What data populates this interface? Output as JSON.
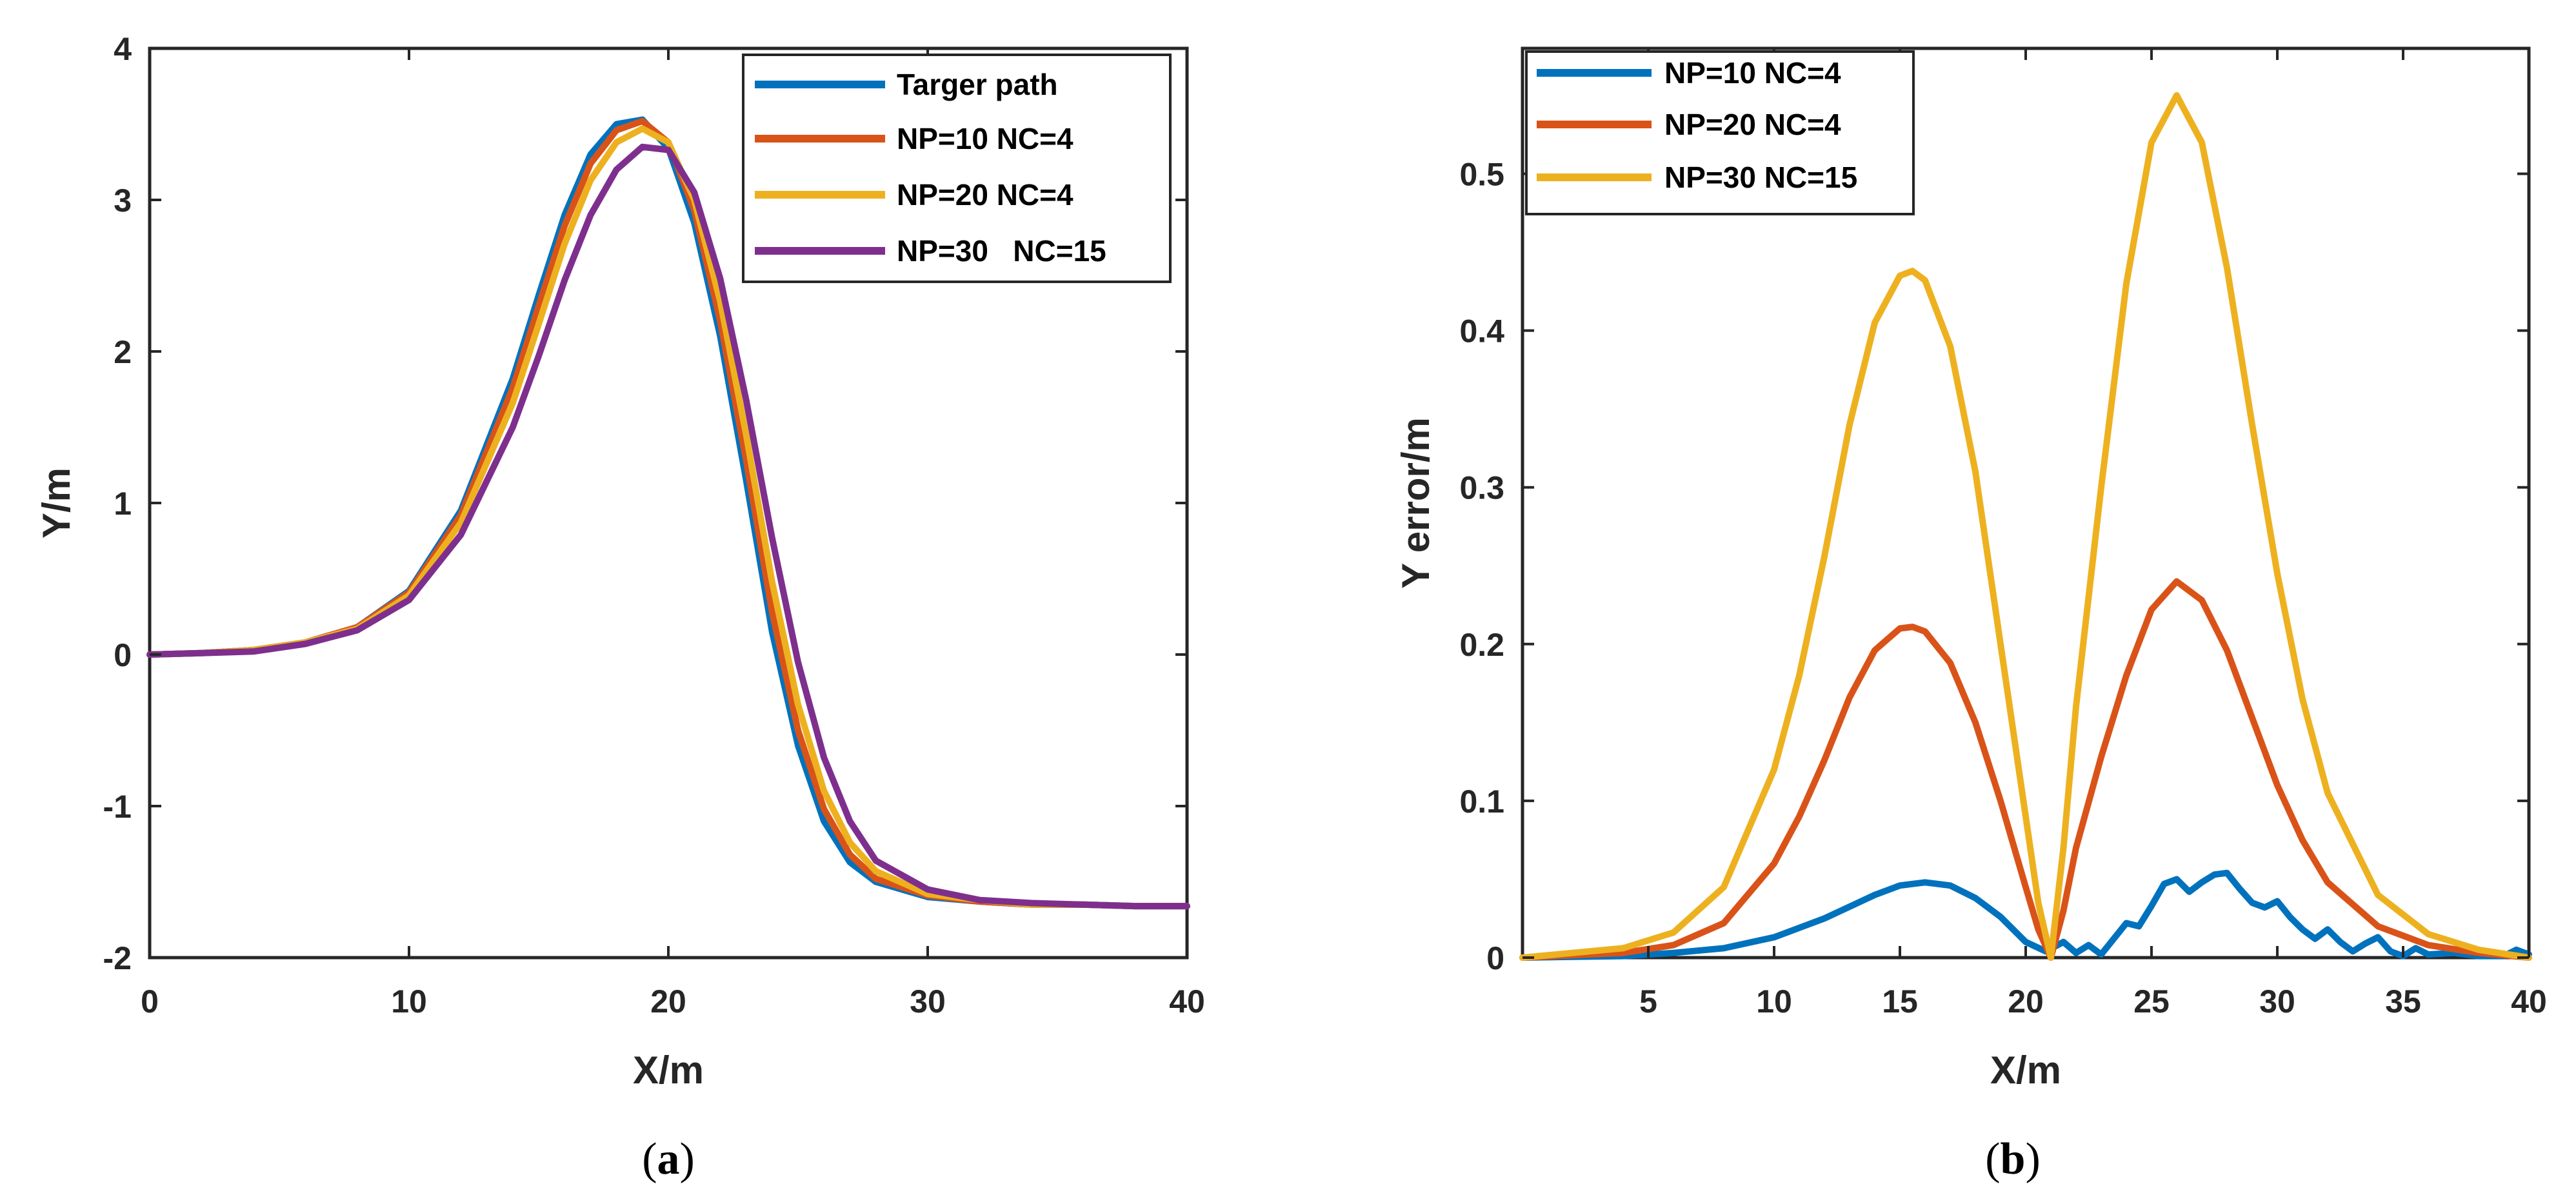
{
  "chart_data": [
    {
      "type": "line",
      "panel_label": "a",
      "caption_open": "(",
      "caption_close": ")",
      "title": "",
      "xlabel": "X/m",
      "ylabel": "Y/m",
      "xlim": [
        0,
        40
      ],
      "ylim": [
        -2,
        4
      ],
      "xticks": [
        0,
        10,
        20,
        30,
        40
      ],
      "yticks": [
        -2,
        -1,
        0,
        1,
        2,
        3,
        4
      ],
      "grid": false,
      "legend_position": "top-right",
      "series": [
        {
          "name": "Targer path",
          "color": "#0072BD",
          "x": [
            0,
            2,
            4,
            6,
            8,
            10,
            12,
            14,
            15,
            16,
            17,
            18,
            19,
            20,
            21,
            22,
            23,
            24,
            25,
            26,
            27,
            28,
            30,
            32,
            34,
            36,
            38,
            40
          ],
          "y": [
            0,
            0.01,
            0.03,
            0.08,
            0.18,
            0.42,
            0.95,
            1.82,
            2.37,
            2.9,
            3.3,
            3.5,
            3.53,
            3.34,
            2.85,
            2.1,
            1.15,
            0.15,
            -0.6,
            -1.1,
            -1.37,
            -1.5,
            -1.6,
            -1.63,
            -1.65,
            -1.65,
            -1.66,
            -1.66
          ]
        },
        {
          "name": "NP=10 NC=4",
          "color": "#D95319",
          "x": [
            0,
            2,
            4,
            6,
            8,
            10,
            12,
            14,
            15,
            16,
            17,
            18,
            19,
            20,
            21,
            22,
            23,
            24,
            25,
            26,
            27,
            28,
            30,
            32,
            34,
            36,
            38,
            40
          ],
          "y": [
            0,
            0.01,
            0.03,
            0.08,
            0.18,
            0.41,
            0.92,
            1.76,
            2.3,
            2.83,
            3.24,
            3.46,
            3.52,
            3.38,
            2.93,
            2.2,
            1.28,
            0.28,
            -0.5,
            -1.02,
            -1.32,
            -1.48,
            -1.59,
            -1.63,
            -1.65,
            -1.65,
            -1.66,
            -1.66
          ]
        },
        {
          "name": "NP=20 NC=4",
          "color": "#EDB120",
          "x": [
            0,
            2,
            4,
            6,
            8,
            10,
            12,
            14,
            15,
            16,
            17,
            18,
            19,
            20,
            21,
            22,
            23,
            24,
            25,
            26,
            27,
            28,
            30,
            32,
            34,
            36,
            38,
            40
          ],
          "y": [
            0,
            0.01,
            0.03,
            0.08,
            0.17,
            0.39,
            0.87,
            1.66,
            2.18,
            2.71,
            3.13,
            3.38,
            3.47,
            3.38,
            3.0,
            2.33,
            1.45,
            0.48,
            -0.33,
            -0.9,
            -1.24,
            -1.43,
            -1.58,
            -1.62,
            -1.65,
            -1.65,
            -1.66,
            -1.66
          ]
        },
        {
          "name": "NP=30   NC=15",
          "color": "#7E2F8E",
          "x": [
            0,
            2,
            4,
            6,
            8,
            10,
            12,
            14,
            15,
            16,
            17,
            18,
            19,
            20,
            21,
            22,
            23,
            24,
            25,
            26,
            27,
            28,
            30,
            32,
            34,
            36,
            38,
            40
          ],
          "y": [
            0,
            0.01,
            0.02,
            0.07,
            0.16,
            0.36,
            0.79,
            1.5,
            1.97,
            2.47,
            2.9,
            3.2,
            3.35,
            3.33,
            3.05,
            2.48,
            1.68,
            0.77,
            -0.05,
            -0.68,
            -1.1,
            -1.36,
            -1.55,
            -1.62,
            -1.64,
            -1.65,
            -1.66,
            -1.66
          ]
        }
      ]
    },
    {
      "type": "line",
      "panel_label": "b",
      "caption_open": "(",
      "caption_close": ")",
      "title": "",
      "xlabel": "X/m",
      "ylabel": "Y error/m",
      "xlim": [
        0,
        40
      ],
      "ylim": [
        0,
        0.58
      ],
      "xticks": [
        5,
        10,
        15,
        20,
        25,
        30,
        35,
        40
      ],
      "yticks": [
        0,
        0.1,
        0.2,
        0.3,
        0.4,
        0.5
      ],
      "grid": false,
      "legend_position": "top-left",
      "series": [
        {
          "name": "NP=10 NC=4",
          "color": "#0072BD",
          "x": [
            0,
            4,
            6,
            8,
            10,
            12,
            14,
            15,
            16,
            17,
            18,
            19,
            20,
            20.8,
            21.5,
            22,
            22.5,
            23,
            23.5,
            24,
            24.5,
            25,
            25.5,
            26,
            26.5,
            27,
            27.5,
            28,
            28.5,
            29,
            29.5,
            30,
            30.5,
            31,
            31.5,
            32,
            32.5,
            33,
            33.5,
            34,
            34.5,
            35,
            35.5,
            36,
            37,
            38,
            39,
            39.5,
            40
          ],
          "y": [
            0,
            0.001,
            0.003,
            0.006,
            0.013,
            0.025,
            0.04,
            0.046,
            0.048,
            0.046,
            0.038,
            0.026,
            0.01,
            0.004,
            0.01,
            0.003,
            0.008,
            0.002,
            0.012,
            0.022,
            0.02,
            0.033,
            0.047,
            0.05,
            0.042,
            0.048,
            0.053,
            0.054,
            0.044,
            0.035,
            0.032,
            0.036,
            0.026,
            0.018,
            0.012,
            0.018,
            0.01,
            0.004,
            0.009,
            0.013,
            0.004,
            0.001,
            0.006,
            0.002,
            0.003,
            0.001,
            0.001,
            0.005,
            0.002
          ]
        },
        {
          "name": "NP=20 NC=4",
          "color": "#D95319",
          "x": [
            0,
            4,
            6,
            8,
            10,
            11,
            12,
            13,
            14,
            15,
            15.5,
            16,
            17,
            18,
            19,
            20,
            20.5,
            21,
            21.5,
            22,
            23,
            24,
            25,
            26,
            27,
            28,
            29,
            30,
            31,
            32,
            34,
            36,
            38,
            40
          ],
          "y": [
            0,
            0.003,
            0.008,
            0.022,
            0.06,
            0.09,
            0.126,
            0.166,
            0.196,
            0.21,
            0.211,
            0.208,
            0.188,
            0.15,
            0.1,
            0.045,
            0.018,
            0.0,
            0.03,
            0.07,
            0.128,
            0.18,
            0.222,
            0.24,
            0.228,
            0.196,
            0.153,
            0.11,
            0.075,
            0.048,
            0.02,
            0.008,
            0.003,
            0.0
          ]
        },
        {
          "name": "NP=30 NC=15",
          "color": "#EDB120",
          "x": [
            0,
            4,
            6,
            8,
            10,
            11,
            12,
            13,
            14,
            15,
            15.5,
            16,
            17,
            18,
            19,
            20,
            20.5,
            21,
            21.5,
            22,
            23,
            24,
            25,
            26,
            27,
            28,
            29,
            30,
            31,
            32,
            34,
            36,
            38,
            40
          ],
          "y": [
            0,
            0.006,
            0.016,
            0.045,
            0.12,
            0.18,
            0.256,
            0.34,
            0.405,
            0.435,
            0.438,
            0.432,
            0.39,
            0.31,
            0.2,
            0.09,
            0.035,
            0.0,
            0.07,
            0.16,
            0.3,
            0.43,
            0.52,
            0.55,
            0.52,
            0.44,
            0.34,
            0.245,
            0.165,
            0.105,
            0.04,
            0.015,
            0.005,
            0.0
          ]
        }
      ]
    }
  ]
}
